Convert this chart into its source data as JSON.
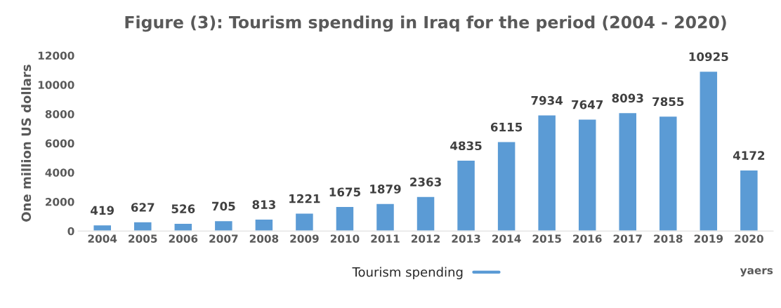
{
  "chart_data": {
    "type": "bar",
    "title": "Figure (3): Tourism spending in Iraq for the period (2004 - 2020)",
    "ylabel": "One million US dollars",
    "xlabel": "yaers",
    "categories": [
      "2004",
      "2005",
      "2006",
      "2007",
      "2008",
      "2009",
      "2010",
      "2011",
      "2012",
      "2013",
      "2014",
      "2015",
      "2016",
      "2017",
      "2018",
      "2019",
      "2020"
    ],
    "series": [
      {
        "name": "Tourism spending",
        "color": "#5b9bd5",
        "values": [
          419,
          627,
          526,
          705,
          813,
          1221,
          1675,
          1879,
          2363,
          4835,
          6115,
          7934,
          7647,
          8093,
          7855,
          10925,
          4172
        ]
      }
    ],
    "ylim": [
      0,
      12000
    ],
    "yticks": [
      0,
      2000,
      4000,
      6000,
      8000,
      10000,
      12000
    ],
    "data_labels": true,
    "grid": false,
    "legend": "bottom"
  }
}
